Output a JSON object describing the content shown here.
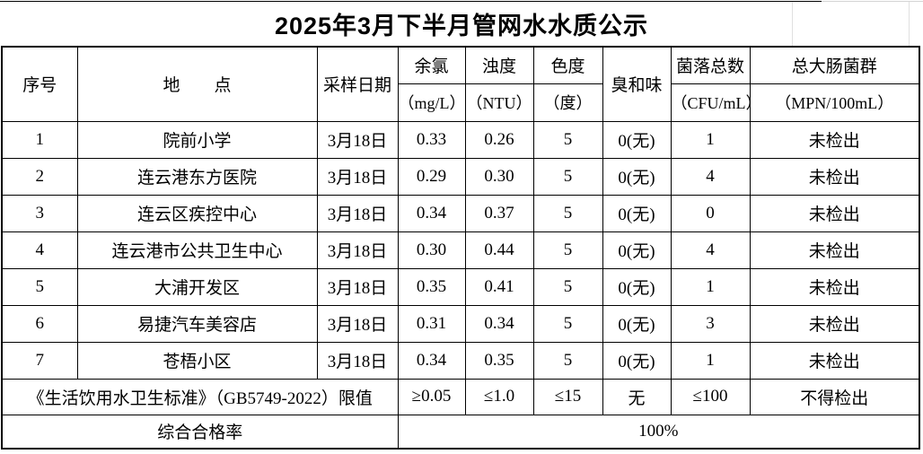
{
  "title": "2025年3月下半月管网水水质公示",
  "table": {
    "header": {
      "serial": "序号",
      "location": "地　　点",
      "sample_date": "采样日期",
      "chlorine": "余氯",
      "chlorine_unit": "（mg/L）",
      "turbidity": "浊度",
      "turbidity_unit": "（NTU）",
      "color": "色度",
      "color_unit": "（度）",
      "odor": "臭和味",
      "bacteria": "菌落总数",
      "bacteria_unit": "（CFU/mL）",
      "coliform": "总大肠菌群",
      "coliform_unit": "（MPN/100mL）"
    },
    "rows": [
      [
        "1",
        "院前小学",
        "3月18日",
        "0.33",
        "0.26",
        "5",
        "0(无)",
        "1",
        "未检出"
      ],
      [
        "2",
        "连云港东方医院",
        "3月18日",
        "0.29",
        "0.30",
        "5",
        "0(无)",
        "4",
        "未检出"
      ],
      [
        "3",
        "连云区疾控中心",
        "3月18日",
        "0.34",
        "0.37",
        "5",
        "0(无)",
        "0",
        "未检出"
      ],
      [
        "4",
        "连云港市公共卫生中心",
        "3月18日",
        "0.30",
        "0.44",
        "5",
        "0(无)",
        "4",
        "未检出"
      ],
      [
        "5",
        "大浦开发区",
        "3月18日",
        "0.35",
        "0.41",
        "5",
        "0(无)",
        "1",
        "未检出"
      ],
      [
        "6",
        "易捷汽车美容店",
        "3月18日",
        "0.31",
        "0.34",
        "5",
        "0(无)",
        "3",
        "未检出"
      ],
      [
        "7",
        "苍梧小区",
        "3月18日",
        "0.34",
        "0.35",
        "5",
        "0(无)",
        "1",
        "未检出"
      ]
    ],
    "limits": {
      "label": "《生活饮用水卫生标准》（GB5749-2022）限值",
      "values": [
        "≥0.05",
        "≤1.0",
        "≤15",
        "无",
        "≤100",
        "不得检出"
      ]
    },
    "summary": {
      "label": "综合合格率",
      "value": "100%"
    }
  }
}
